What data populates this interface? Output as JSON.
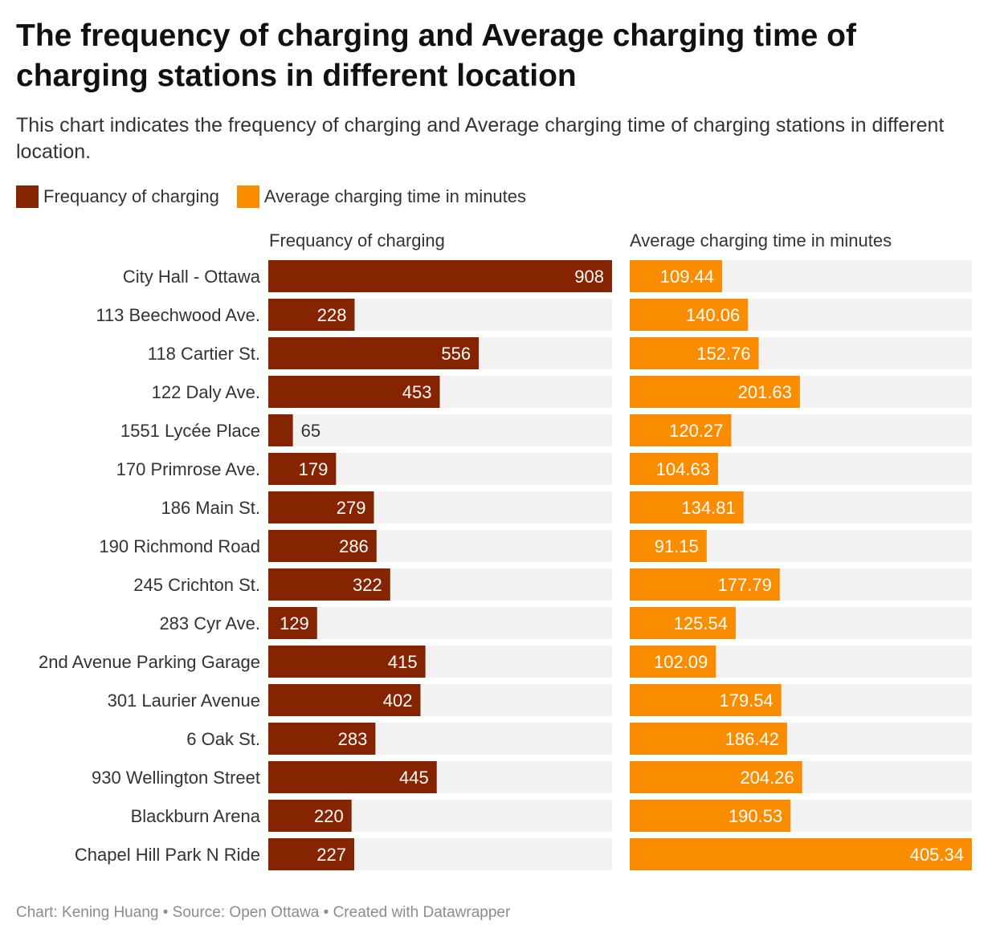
{
  "title": "The frequency of charging and Average charging time of charging stations in different location",
  "subtitle": "This chart indicates the frequency of charging and Average charging time of charging stations in different location.",
  "legend": [
    {
      "label": "Frequancy of charging",
      "color": "#852400"
    },
    {
      "label": "Average charging time in minutes",
      "color": "#fa8c00"
    }
  ],
  "panels": [
    {
      "title": "Frequancy of charging"
    },
    {
      "title": "Average charging time in minutes"
    }
  ],
  "footer": "Chart: Kening Huang • Source: Open Ottawa • Created with Datawrapper",
  "chart_data": {
    "type": "bar",
    "orientation": "horizontal",
    "title": "The frequency of charging and Average charging time of charging stations in different location",
    "categories": [
      "City Hall - Ottawa",
      "113 Beechwood Ave.",
      "118 Cartier St.",
      "122 Daly Ave.",
      "1551 Lycée Place",
      "170 Primrose Ave.",
      "186 Main St.",
      "190 Richmond Road",
      "245 Crichton St.",
      "283 Cyr Ave.",
      "2nd Avenue Parking Garage",
      "301 Laurier Avenue",
      "6 Oak St.",
      "930 Wellington Street",
      "Blackburn Arena",
      "Chapel Hill Park N Ride"
    ],
    "series": [
      {
        "name": "Frequancy of charging",
        "color": "#852400",
        "values": [
          908,
          228,
          556,
          453,
          65,
          179,
          279,
          286,
          322,
          129,
          415,
          402,
          283,
          445,
          220,
          227
        ],
        "labels": [
          "908",
          "228",
          "556",
          "453",
          "65",
          "179",
          "279",
          "286",
          "322",
          "129",
          "415",
          "402",
          "283",
          "445",
          "220",
          "227"
        ],
        "xlim": [
          0,
          908
        ]
      },
      {
        "name": "Average charging time in minutes",
        "color": "#fa8c00",
        "values": [
          109.44,
          140.06,
          152.76,
          201.63,
          120.27,
          104.63,
          134.81,
          91.15,
          177.79,
          125.54,
          102.09,
          179.54,
          186.42,
          204.26,
          190.53,
          405.34
        ],
        "labels": [
          "109.44",
          "140.06",
          "152.76",
          "201.63",
          "120.27",
          "104.63",
          "134.81",
          "91.15",
          "177.79",
          "125.54",
          "102.09",
          "179.54",
          "186.42",
          "204.26",
          "190.53",
          "405.34"
        ],
        "xlim": [
          0,
          405.34
        ]
      }
    ],
    "track_color": "#f2f2f2",
    "grid": false,
    "legend_position": "top-left"
  }
}
